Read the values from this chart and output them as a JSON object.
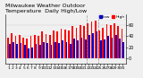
{
  "title": "Milwaukee Weather Outdoor\nTemperature  Daily High/Low",
  "ylim": [
    -10,
    80
  ],
  "yticks": [
    0,
    20,
    40,
    60
  ],
  "background_color": "#f0f0f0",
  "high_color": "#ff0000",
  "low_color": "#0000cc",
  "bar_width": 0.42,
  "n_days": 31,
  "highs": [
    38,
    46,
    40,
    42,
    38,
    36,
    40,
    42,
    40,
    48,
    44,
    42,
    50,
    48,
    54,
    52,
    50,
    58,
    56,
    60,
    58,
    63,
    66,
    68,
    50,
    56,
    62,
    60,
    63,
    58,
    53
  ],
  "lows": [
    26,
    30,
    26,
    28,
    24,
    18,
    20,
    26,
    24,
    30,
    28,
    24,
    30,
    28,
    32,
    30,
    26,
    36,
    32,
    38,
    34,
    42,
    46,
    48,
    32,
    34,
    40,
    38,
    42,
    36,
    30
  ],
  "vline_x": [
    20.5,
    23.5
  ],
  "title_fontsize": 4.5,
  "tick_fontsize": 3.2,
  "ytick_fontsize": 3.5,
  "legend_fontsize": 3.2
}
